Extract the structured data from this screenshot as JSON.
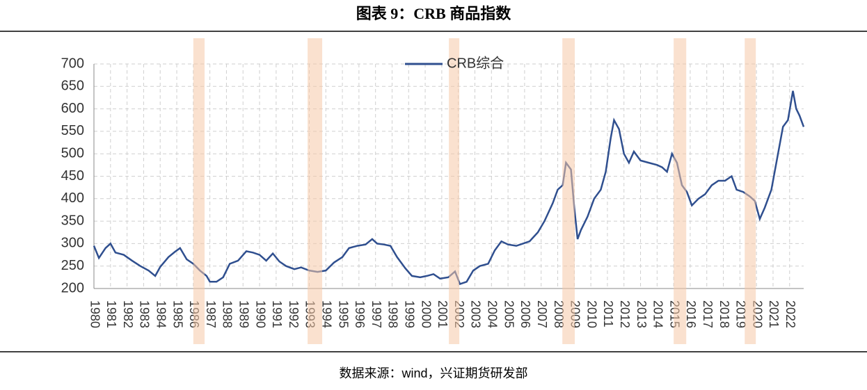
{
  "title": "图表 9：CRB 商品指数",
  "source": "数据来源：wind，兴证期货研发部",
  "chart_data": {
    "type": "line",
    "x": [
      1980.0,
      1980.3,
      1980.7,
      1981.0,
      1981.3,
      1981.8,
      1982.3,
      1982.8,
      1983.3,
      1983.7,
      1984.0,
      1984.5,
      1984.9,
      1985.2,
      1985.6,
      1986.0,
      1986.4,
      1986.8,
      1987.0,
      1987.4,
      1987.8,
      1988.2,
      1988.7,
      1989.2,
      1989.6,
      1990.0,
      1990.4,
      1990.8,
      1991.2,
      1991.6,
      1992.1,
      1992.5,
      1993.0,
      1993.5,
      1994.0,
      1994.5,
      1995.0,
      1995.4,
      1995.9,
      1996.4,
      1996.8,
      1997.1,
      1997.5,
      1997.9,
      1998.3,
      1998.8,
      1999.2,
      1999.7,
      2000.1,
      2000.5,
      2000.9,
      2001.4,
      2001.8,
      2002.1,
      2002.5,
      2002.9,
      2003.3,
      2003.8,
      2004.2,
      2004.6,
      2005.0,
      2005.5,
      2005.9,
      2006.3,
      2006.8,
      2007.2,
      2007.7,
      2008.0,
      2008.3,
      2008.5,
      2008.8,
      2009.0,
      2009.2,
      2009.4,
      2009.8,
      2010.2,
      2010.6,
      2010.9,
      2011.2,
      2011.4,
      2011.7,
      2012.0,
      2012.3,
      2012.6,
      2013.0,
      2013.5,
      2014.0,
      2014.3,
      2014.6,
      2014.9,
      2015.2,
      2015.5,
      2015.8,
      2016.1,
      2016.5,
      2016.9,
      2017.3,
      2017.7,
      2018.1,
      2018.5,
      2018.8,
      2019.2,
      2019.6,
      2019.9,
      2020.2,
      2020.5,
      2020.9,
      2021.3,
      2021.6,
      2021.9,
      2022.2,
      2022.4,
      2022.6,
      2022.85
    ],
    "series": [
      {
        "name": "CRB综合",
        "color": "#2f4f8f",
        "values": [
          295,
          268,
          290,
          300,
          280,
          275,
          262,
          250,
          240,
          228,
          248,
          270,
          282,
          290,
          265,
          255,
          240,
          228,
          215,
          215,
          225,
          255,
          262,
          283,
          280,
          275,
          262,
          278,
          260,
          250,
          243,
          247,
          240,
          237,
          240,
          258,
          270,
          290,
          295,
          298,
          310,
          300,
          298,
          295,
          270,
          245,
          228,
          225,
          228,
          232,
          222,
          225,
          238,
          210,
          215,
          240,
          250,
          255,
          285,
          305,
          298,
          295,
          300,
          305,
          325,
          350,
          390,
          420,
          430,
          480,
          465,
          380,
          310,
          330,
          360,
          400,
          420,
          460,
          535,
          575,
          555,
          500,
          480,
          505,
          485,
          480,
          475,
          470,
          460,
          500,
          480,
          430,
          415,
          385,
          400,
          410,
          430,
          440,
          440,
          450,
          420,
          415,
          405,
          395,
          355,
          380,
          420,
          500,
          560,
          575,
          640,
          600,
          585,
          560
        ]
      }
    ],
    "highlight_periods": [
      [
        1986.0,
        1986.68
      ],
      [
        1992.9,
        1993.78
      ],
      [
        2001.43,
        2002.06
      ],
      [
        2008.28,
        2009.03
      ],
      [
        2015.0,
        2015.76
      ],
      [
        2019.29,
        2019.96
      ]
    ],
    "highlight_color": "#f6c9a8",
    "xlim": [
      1980,
      2022.85
    ],
    "xticks": [
      1980,
      1981,
      1982,
      1983,
      1984,
      1985,
      1986,
      1987,
      1988,
      1989,
      1990,
      1991,
      1992,
      1993,
      1994,
      1995,
      1996,
      1997,
      1998,
      1999,
      2000,
      2001,
      2002,
      2003,
      2004,
      2005,
      2006,
      2007,
      2008,
      2009,
      2010,
      2011,
      2012,
      2013,
      2014,
      2015,
      2016,
      2017,
      2018,
      2019,
      2020,
      2021,
      2022
    ],
    "ylim": [
      200,
      700
    ],
    "yticks": [
      200,
      250,
      300,
      350,
      400,
      450,
      500,
      550,
      600,
      650,
      700
    ],
    "grid": true
  }
}
